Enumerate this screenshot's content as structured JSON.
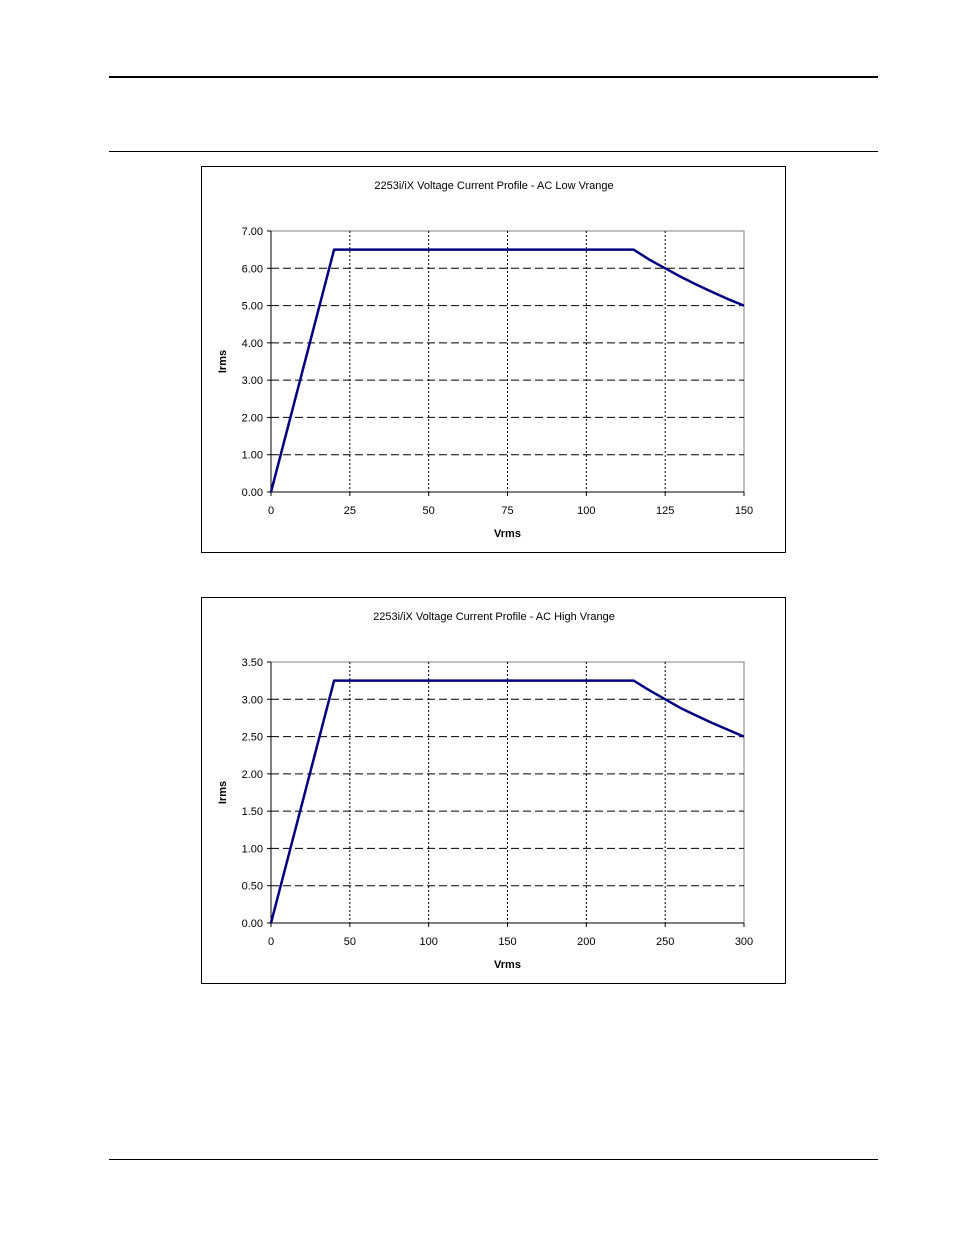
{
  "chart_data": [
    {
      "type": "line",
      "title": "2253i/iX Voltage Current Profile - AC Low Vrange",
      "xlabel": "Vrms",
      "ylabel": "Irms",
      "xlim": [
        0,
        150
      ],
      "ylim": [
        0,
        7
      ],
      "x_ticks": [
        "0",
        "25",
        "50",
        "75",
        "100",
        "125",
        "150"
      ],
      "y_ticks": [
        "0.00",
        "1.00",
        "2.00",
        "3.00",
        "4.00",
        "5.00",
        "6.00",
        "7.00"
      ],
      "grid": "on",
      "legend": "none",
      "series": [
        {
          "color": "#000080",
          "x": [
            0,
            20,
            115,
            120,
            125,
            130,
            135,
            140,
            145,
            150
          ],
          "y": [
            0,
            6.5,
            6.5,
            6.23,
            6.0,
            5.77,
            5.56,
            5.36,
            5.17,
            5.0
          ]
        }
      ]
    },
    {
      "type": "line",
      "title": "2253i/iX Voltage Current Profile - AC High Vrange",
      "xlabel": "Vrms",
      "ylabel": "Irms",
      "xlim": [
        0,
        300
      ],
      "ylim": [
        0,
        3.5
      ],
      "x_ticks": [
        "0",
        "50",
        "100",
        "150",
        "200",
        "250",
        "300"
      ],
      "y_ticks": [
        "0.00",
        "0.50",
        "1.00",
        "1.50",
        "2.00",
        "2.50",
        "3.00",
        "3.50"
      ],
      "grid": "on",
      "legend": "none",
      "series": [
        {
          "color": "#000080",
          "x": [
            0,
            40,
            230,
            240,
            250,
            260,
            270,
            280,
            290,
            300
          ],
          "y": [
            0,
            3.25,
            3.25,
            3.12,
            3.0,
            2.88,
            2.78,
            2.68,
            2.59,
            2.5
          ]
        }
      ]
    }
  ]
}
